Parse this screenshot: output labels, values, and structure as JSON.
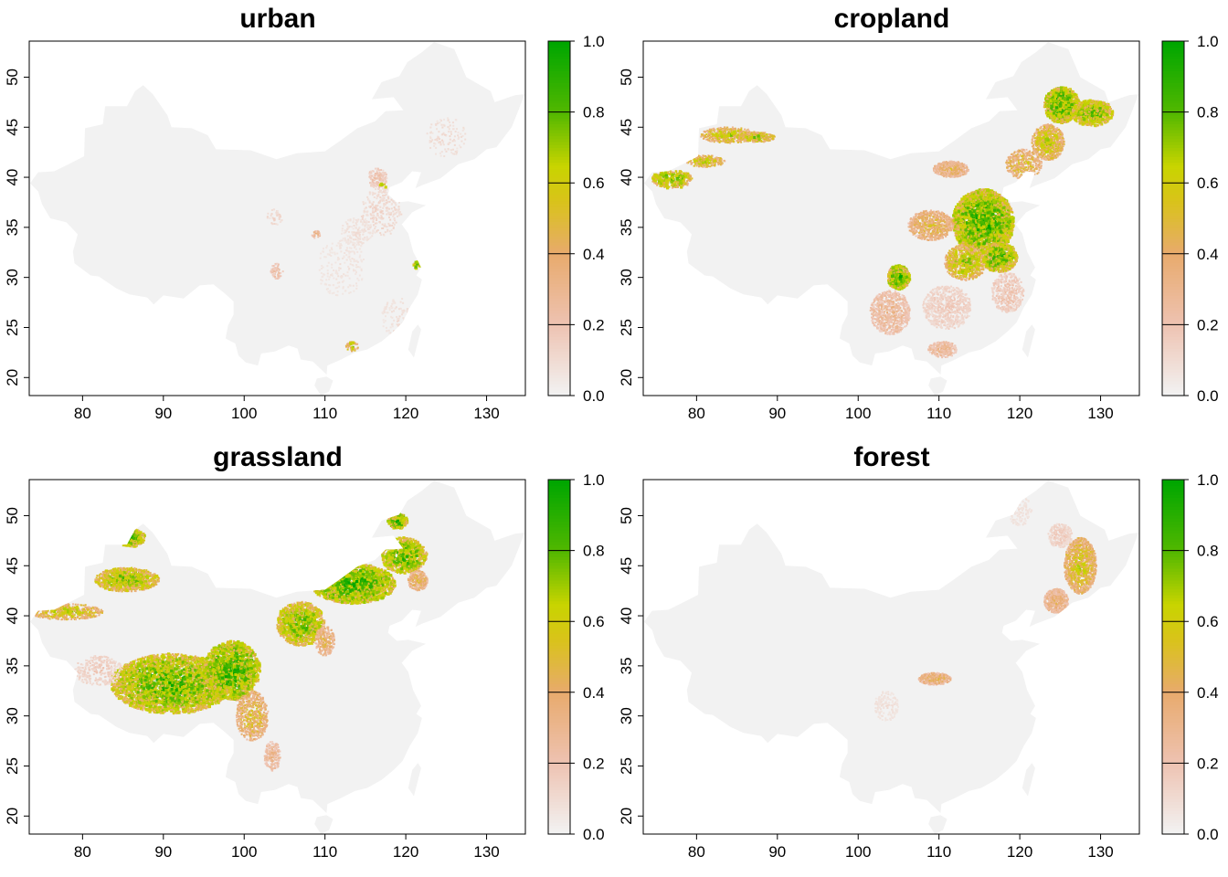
{
  "figure": {
    "x_ticks": [
      "80",
      "90",
      "100",
      "110",
      "120",
      "130"
    ],
    "y_ticks": [
      "20",
      "25",
      "30",
      "35",
      "40",
      "45",
      "50"
    ],
    "legend_ticks": [
      "0.0",
      "0.2",
      "0.4",
      "0.6",
      "0.8",
      "1.0"
    ]
  },
  "colors": {
    "background_land": "#f2f2f2",
    "palette": [
      "#f2f2f2",
      "#eec2b1",
      "#e8aa6d",
      "#d9c31a",
      "#c8d400",
      "#53b800",
      "#00a600"
    ]
  },
  "panels": [
    {
      "title": "urban",
      "cover_level": "low, scattered along eastern cities"
    },
    {
      "title": "cropland",
      "cover_level": "high in North China Plain, Northeast plain, Sichuan basin"
    },
    {
      "title": "grassland",
      "cover_level": "high across Tibetan Plateau, Inner Mongolia, Xinjiang mountains"
    },
    {
      "title": "forest",
      "cover_level": "moderate in Northeast mountains and Qinling"
    }
  ]
}
